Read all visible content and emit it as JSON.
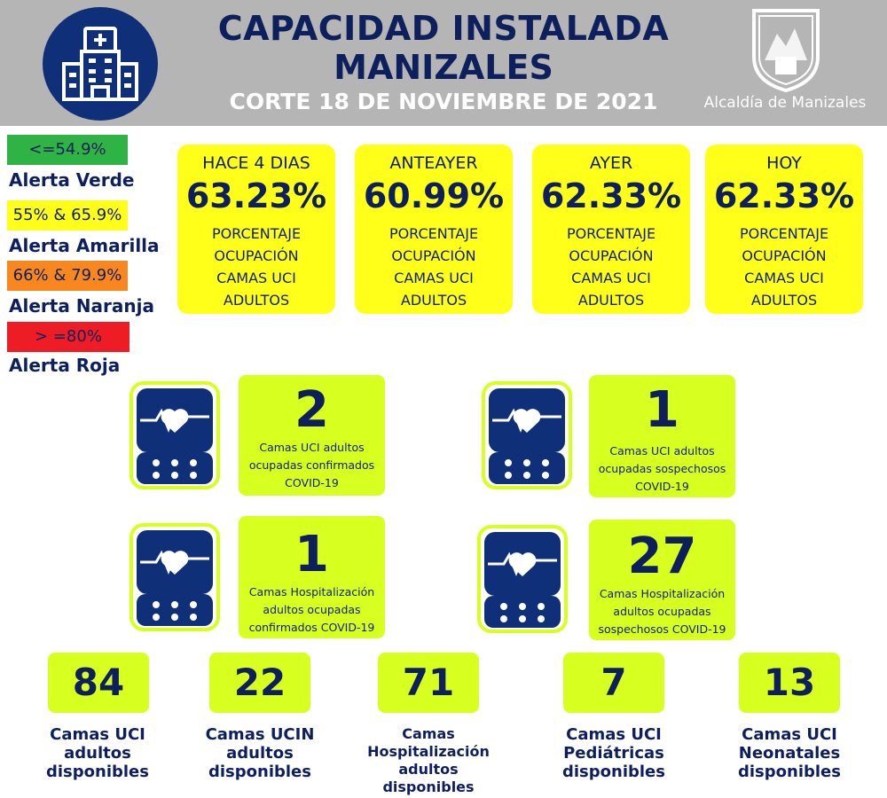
{
  "header": {
    "title_line1": "CAPACIDAD INSTALADA",
    "title_line2": "MANIZALES",
    "subtitle": "CORTE 18 DE NOVIEMBRE  DE 2021",
    "org": "Alcaldía de Manizales",
    "icons": [
      "hospital-icon",
      "city-shield-icon"
    ]
  },
  "legend": [
    {
      "range": "<=54.9%",
      "label": "Alerta Verde",
      "color": "#2fb344"
    },
    {
      "range": "55% & 65.9%",
      "label": "Alerta Amarilla",
      "color": "#ffff1a"
    },
    {
      "range": "66% & 79.9%",
      "label": "Alerta Naranja",
      "color": "#f7871e"
    },
    {
      "range": "> =80%",
      "label": "Alerta Roja",
      "color": "#ee1c25"
    }
  ],
  "occupancy": [
    {
      "period": "HACE 4 DIAS",
      "value": "63.23%",
      "desc": [
        "PORCENTAJE",
        "OCUPACIÓN",
        "CAMAS UCI",
        "ADULTOS"
      ]
    },
    {
      "period": "ANTEAYER",
      "value": "60.99%",
      "desc": [
        "PORCENTAJE",
        "OCUPACIÓN",
        "CAMAS UCI",
        "ADULTOS"
      ]
    },
    {
      "period": "AYER",
      "value": "62.33%",
      "desc": [
        "PORCENTAJE",
        "OCUPACIÓN",
        "CAMAS UCI",
        "ADULTOS"
      ]
    },
    {
      "period": "HOY",
      "value": "62.33%",
      "desc": [
        "PORCENTAJE",
        "OCUPACIÓN",
        "CAMAS UCI",
        "ADULTOS"
      ]
    }
  ],
  "covid": [
    {
      "value": "2",
      "desc": [
        "Camas UCI adultos",
        "ocupadas confirmados",
        "COVID-19"
      ]
    },
    {
      "value": "1",
      "desc": [
        "Camas UCI adultos",
        "ocupadas sospechosos",
        "COVID-19"
      ]
    },
    {
      "value": "1",
      "desc": [
        "Camas  Hospitalización",
        "adultos ocupadas",
        "confirmados COVID-19"
      ]
    },
    {
      "value": "27",
      "desc": [
        "Camas  Hospitalización",
        "adultos ocupadas",
        "sospechosos COVID-19"
      ]
    }
  ],
  "available": [
    {
      "value": "84",
      "desc": [
        "Camas UCI",
        "adultos",
        "disponibles"
      ]
    },
    {
      "value": "22",
      "desc": [
        "Camas UCIN",
        "adultos",
        "disponibles"
      ]
    },
    {
      "value": "71",
      "desc": [
        "Camas",
        "Hospitalización",
        "adultos",
        "disponibles"
      ]
    },
    {
      "value": "7",
      "desc": [
        "Camas  UCI",
        "Pediátricas",
        "disponibles"
      ]
    },
    {
      "value": "13",
      "desc": [
        "Camas  UCI",
        "Neonatales",
        "disponibles"
      ]
    }
  ],
  "colors": {
    "navy": "#0d1f5c",
    "yellow": "#ffff1a",
    "lime": "#d7ff1f",
    "header_gray": "#b5b5b5"
  }
}
